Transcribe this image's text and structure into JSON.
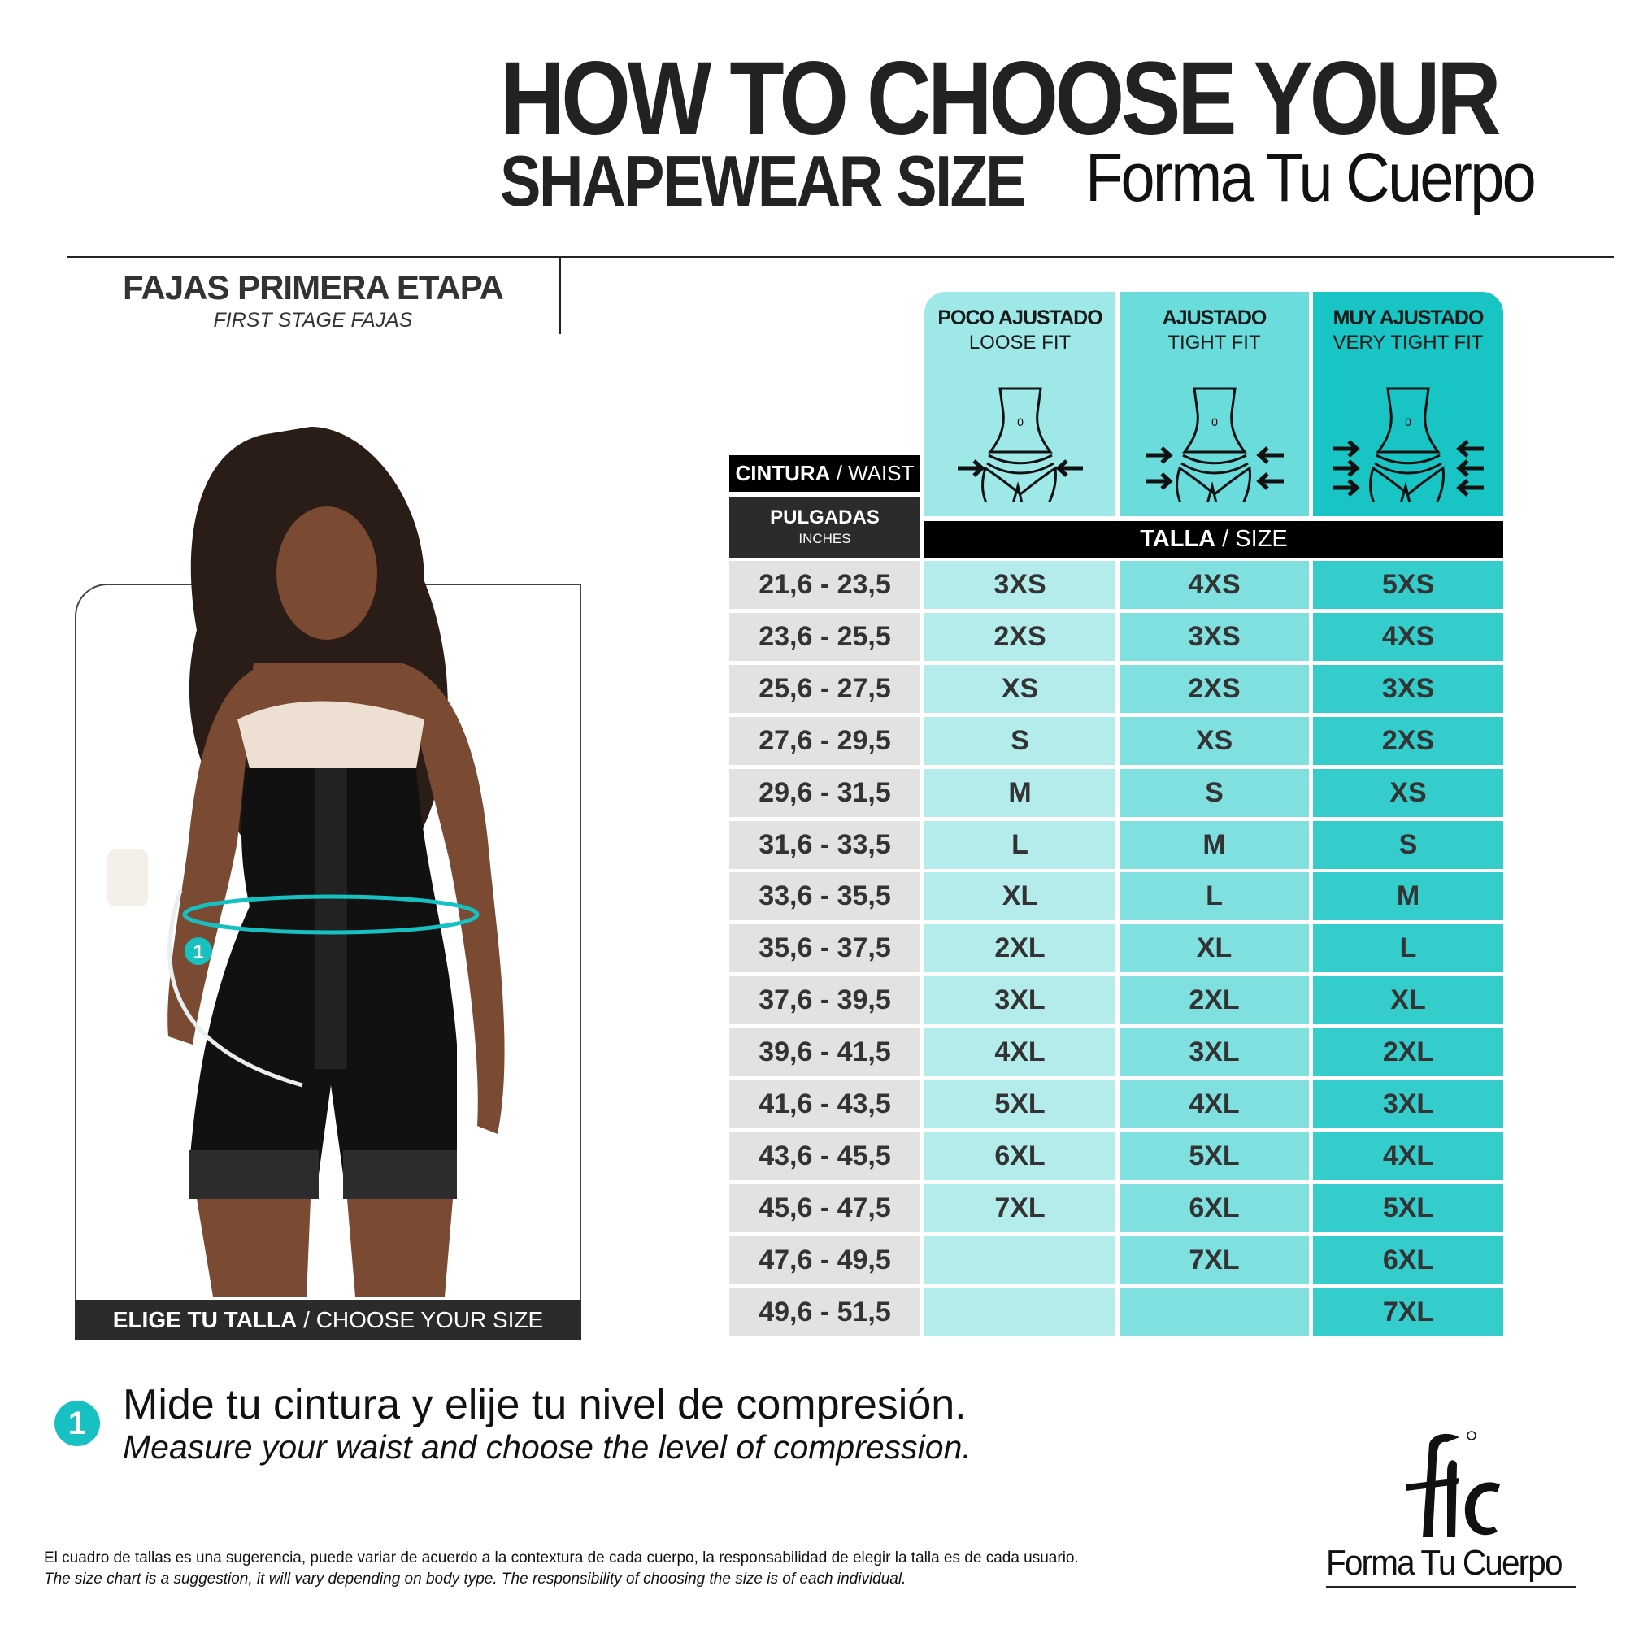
{
  "title": {
    "line1": "HOW TO CHOOSE YOUR",
    "line2": "SHAPEWEAR SIZE",
    "brand": "Forma Tu Cuerpo"
  },
  "section": {
    "title": "FAJAS PRIMERA ETAPA",
    "subtitle": "FIRST STAGE FAJAS"
  },
  "photo": {
    "bar_bold": "ELIGE TU TALLA",
    "bar_sep": " / ",
    "bar_light": "CHOOSE YOUR SIZE",
    "marker": "1"
  },
  "table": {
    "waist_label_bold": "CINTURA",
    "waist_sep": " / ",
    "waist_label": "WAIST",
    "unit_label": "PULGADAS",
    "unit_sub": "INCHES",
    "size_label_bold": "TALLA",
    "size_sep": " / ",
    "size_label": "SIZE",
    "columns": [
      {
        "es": "POCO AJUSTADO",
        "en": "LOOSE FIT",
        "icon": "body-loose-fit-icon",
        "color": "#9ee8e8"
      },
      {
        "es": "AJUSTADO",
        "en": "TIGHT FIT",
        "icon": "body-tight-fit-icon",
        "color": "#6bdcdc"
      },
      {
        "es": "MUY AJUSTADO",
        "en": "VERY TIGHT FIT",
        "icon": "body-very-tight-fit-icon",
        "color": "#19c4c4"
      }
    ],
    "rows": [
      [
        "21,6 - 23,5",
        "3XS",
        "4XS",
        "5XS"
      ],
      [
        "23,6 - 25,5",
        "2XS",
        "3XS",
        "4XS"
      ],
      [
        "25,6 - 27,5",
        "XS",
        "2XS",
        "3XS"
      ],
      [
        "27,6 - 29,5",
        "S",
        "XS",
        "2XS"
      ],
      [
        "29,6 - 31,5",
        "M",
        "S",
        "XS"
      ],
      [
        "31,6 - 33,5",
        "L",
        "M",
        "S"
      ],
      [
        "33,6 - 35,5",
        "XL",
        "L",
        "M"
      ],
      [
        "35,6 - 37,5",
        "2XL",
        "XL",
        "L"
      ],
      [
        "37,6 - 39,5",
        "3XL",
        "2XL",
        "XL"
      ],
      [
        "39,6 - 41,5",
        "4XL",
        "3XL",
        "2XL"
      ],
      [
        "41,6 - 43,5",
        "5XL",
        "4XL",
        "3XL"
      ],
      [
        "43,6 - 45,5",
        "6XL",
        "5XL",
        "4XL"
      ],
      [
        "45,6 - 47,5",
        "7XL",
        "6XL",
        "5XL"
      ],
      [
        "47,6 - 49,5",
        "",
        "7XL",
        "6XL"
      ],
      [
        "49,6 - 51,5",
        "",
        "",
        "7XL"
      ]
    ]
  },
  "instruction": {
    "number": "1",
    "es": "Mide tu cintura y elije tu nivel de compresión.",
    "en": "Measure your waist and choose the level of compression."
  },
  "disclaimer": {
    "es": "El cuadro de tallas es una sugerencia, puede variar de acuerdo a la contextura de cada cuerpo, la responsabilidad de elegir la talla es de cada usuario.",
    "en": "The size chart is a suggestion, it will vary depending on body type. The responsibility of choosing the size is of each individual."
  },
  "logo": {
    "text": "Forma Tu Cuerpo",
    "monogram": "FTC"
  },
  "colors": {
    "accent": "#17c1c1",
    "col1": "#b4ecec",
    "col2": "#80e0e0",
    "col3": "#35cccc",
    "waist": "#e2e2e2"
  }
}
